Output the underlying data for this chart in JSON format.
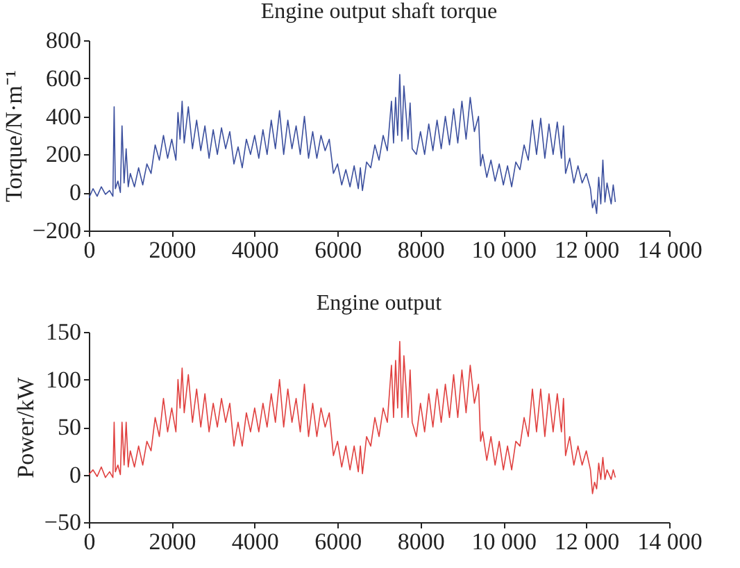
{
  "chart_data": [
    {
      "type": "line",
      "title": "Engine output shaft torque",
      "ylabel": "Torque/N·m⁻¹",
      "x": [
        0,
        100,
        200,
        300,
        400,
        500,
        580,
        610,
        640,
        700,
        760,
        800,
        850,
        900,
        950,
        1000,
        1100,
        1200,
        1300,
        1400,
        1500,
        1600,
        1700,
        1800,
        1900,
        2000,
        2100,
        2150,
        2200,
        2250,
        2300,
        2400,
        2500,
        2600,
        2700,
        2800,
        2900,
        3000,
        3100,
        3200,
        3300,
        3400,
        3500,
        3600,
        3700,
        3800,
        3900,
        4000,
        4100,
        4200,
        4300,
        4400,
        4500,
        4600,
        4700,
        4800,
        4900,
        5000,
        5100,
        5200,
        5300,
        5400,
        5500,
        5600,
        5700,
        5800,
        5900,
        6000,
        6100,
        6200,
        6300,
        6400,
        6500,
        6550,
        6600,
        6700,
        6800,
        6900,
        7000,
        7100,
        7200,
        7300,
        7350,
        7400,
        7450,
        7500,
        7550,
        7600,
        7700,
        7750,
        7800,
        7900,
        8000,
        8100,
        8200,
        8300,
        8400,
        8500,
        8600,
        8700,
        8800,
        8900,
        9000,
        9100,
        9200,
        9300,
        9400,
        9450,
        9500,
        9600,
        9700,
        9800,
        9900,
        10000,
        10100,
        10200,
        10300,
        10400,
        10500,
        10600,
        10700,
        10800,
        10900,
        11000,
        11100,
        11200,
        11300,
        11400,
        11450,
        11500,
        11600,
        11700,
        11800,
        11900,
        12000,
        12100,
        12150,
        12200,
        12250,
        12300,
        12350,
        12400,
        12450,
        12500,
        12600,
        12650,
        12700
      ],
      "series": [
        {
          "color": "#3b4f9e",
          "values": [
            -30,
            20,
            -20,
            30,
            -10,
            10,
            -20,
            450,
            20,
            60,
            0,
            350,
            50,
            230,
            30,
            100,
            30,
            130,
            40,
            150,
            100,
            250,
            170,
            300,
            180,
            280,
            170,
            420,
            280,
            480,
            260,
            450,
            230,
            380,
            220,
            350,
            180,
            330,
            200,
            340,
            230,
            320,
            150,
            240,
            130,
            280,
            200,
            300,
            180,
            330,
            200,
            380,
            230,
            430,
            200,
            380,
            230,
            350,
            200,
            400,
            180,
            320,
            180,
            300,
            220,
            280,
            100,
            150,
            40,
            120,
            30,
            140,
            20,
            130,
            10,
            160,
            130,
            250,
            170,
            300,
            220,
            480,
            260,
            500,
            300,
            620,
            270,
            560,
            280,
            470,
            230,
            200,
            320,
            200,
            360,
            220,
            380,
            230,
            400,
            250,
            440,
            260,
            480,
            280,
            500,
            320,
            400,
            140,
            200,
            80,
            170,
            60,
            150,
            40,
            140,
            30,
            160,
            120,
            250,
            170,
            380,
            200,
            390,
            180,
            360,
            200,
            370,
            180,
            350,
            100,
            180,
            50,
            140,
            50,
            100,
            20,
            -80,
            -40,
            -110,
            80,
            -60,
            170,
            -50,
            50,
            -60,
            40,
            -50
          ]
        }
      ],
      "xlim": [
        0,
        14000
      ],
      "xticks": [
        0,
        2000,
        4000,
        6000,
        8000,
        {
          "value": 10000,
          "label": "10 000"
        },
        {
          "value": 12000,
          "label": "12 000"
        },
        {
          "value": 14000,
          "label": "14 000"
        }
      ],
      "ylim": [
        -200,
        800
      ],
      "yticks": [
        {
          "value": -200,
          "label": "−200"
        },
        0,
        200,
        400,
        600,
        800
      ],
      "grid": false
    },
    {
      "type": "line",
      "title": "Engine output",
      "ylabel": "Power/kW",
      "x": [
        0,
        100,
        200,
        300,
        400,
        500,
        580,
        610,
        640,
        700,
        760,
        800,
        850,
        900,
        950,
        1000,
        1100,
        1200,
        1300,
        1400,
        1500,
        1600,
        1700,
        1800,
        1900,
        2000,
        2100,
        2150,
        2200,
        2250,
        2300,
        2400,
        2500,
        2600,
        2700,
        2800,
        2900,
        3000,
        3100,
        3200,
        3300,
        3400,
        3500,
        3600,
        3700,
        3800,
        3900,
        4000,
        4100,
        4200,
        4300,
        4400,
        4500,
        4600,
        4700,
        4800,
        4900,
        5000,
        5100,
        5200,
        5300,
        5400,
        5500,
        5600,
        5700,
        5800,
        5900,
        6000,
        6100,
        6200,
        6300,
        6400,
        6500,
        6550,
        6600,
        6700,
        6800,
        6900,
        7000,
        7100,
        7200,
        7300,
        7350,
        7400,
        7450,
        7500,
        7550,
        7600,
        7700,
        7750,
        7800,
        7900,
        8000,
        8100,
        8200,
        8300,
        8400,
        8500,
        8600,
        8700,
        8800,
        8900,
        9000,
        9100,
        9200,
        9300,
        9400,
        9450,
        9500,
        9600,
        9700,
        9800,
        9900,
        10000,
        10100,
        10200,
        10300,
        10400,
        10500,
        10600,
        10700,
        10800,
        10900,
        11000,
        11100,
        11200,
        11300,
        11400,
        11450,
        11500,
        11600,
        11700,
        11800,
        11900,
        12000,
        12100,
        12150,
        12200,
        12250,
        12300,
        12350,
        12400,
        12450,
        12500,
        12600,
        12650,
        12700
      ],
      "series": [
        {
          "color": "#e0403f",
          "values": [
            0,
            5,
            -2,
            8,
            -3,
            3,
            -3,
            55,
            3,
            10,
            0,
            55,
            10,
            55,
            8,
            25,
            8,
            30,
            10,
            35,
            25,
            60,
            40,
            80,
            45,
            70,
            45,
            100,
            70,
            112,
            65,
            105,
            55,
            90,
            50,
            85,
            45,
            75,
            50,
            80,
            55,
            75,
            30,
            55,
            30,
            65,
            45,
            70,
            45,
            75,
            50,
            85,
            55,
            100,
            50,
            90,
            55,
            80,
            45,
            95,
            40,
            75,
            40,
            70,
            50,
            65,
            20,
            35,
            8,
            30,
            5,
            30,
            3,
            30,
            1,
            40,
            30,
            60,
            40,
            70,
            55,
            115,
            60,
            120,
            70,
            140,
            60,
            125,
            60,
            110,
            55,
            40,
            75,
            45,
            85,
            50,
            90,
            55,
            95,
            60,
            105,
            60,
            110,
            65,
            115,
            75,
            95,
            35,
            45,
            15,
            40,
            10,
            35,
            5,
            30,
            5,
            35,
            30,
            60,
            40,
            90,
            45,
            90,
            40,
            85,
            45,
            85,
            45,
            80,
            20,
            40,
            10,
            30,
            10,
            25,
            5,
            -20,
            -8,
            -15,
            12,
            -5,
            18,
            -5,
            5,
            -5,
            5,
            -3
          ]
        }
      ],
      "xlim": [
        0,
        14000
      ],
      "xticks": [
        0,
        2000,
        4000,
        6000,
        8000,
        {
          "value": 10000,
          "label": "10 000"
        },
        {
          "value": 12000,
          "label": "12 000"
        },
        {
          "value": 14000,
          "label": "14 000"
        }
      ],
      "ylim": [
        -50,
        150
      ],
      "yticks": [
        {
          "value": -50,
          "label": "−50"
        },
        0,
        50,
        100,
        150
      ],
      "grid": false
    }
  ]
}
